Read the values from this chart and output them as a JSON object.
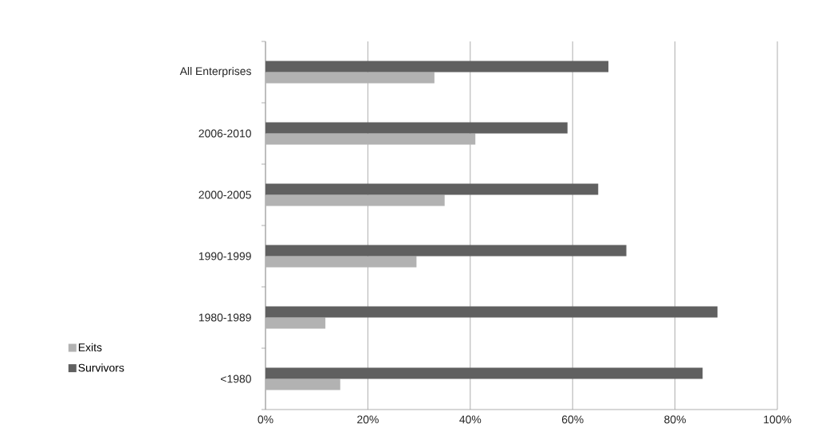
{
  "chart_data": {
    "type": "bar",
    "orientation": "horizontal",
    "categories": [
      "All Enterprises",
      "2006-2010",
      "2000-2005",
      "1990-1999",
      "1980-1989",
      "<1980"
    ],
    "series": [
      {
        "name": "Exits",
        "color": "#b2b2b2",
        "values": [
          33,
          41,
          35,
          29.5,
          11.7,
          14.6
        ]
      },
      {
        "name": "Survivors",
        "color": "#606060",
        "values": [
          67,
          59,
          65,
          70.5,
          88.3,
          85.4
        ]
      }
    ],
    "xlim": [
      0,
      100
    ],
    "xticks": [
      {
        "value": 0,
        "label": "0%"
      },
      {
        "value": 20,
        "label": "20%"
      },
      {
        "value": 40,
        "label": "40%"
      },
      {
        "value": 60,
        "label": "60%"
      },
      {
        "value": 80,
        "label": "80%"
      },
      {
        "value": 100,
        "label": "100%"
      }
    ],
    "grid": "x",
    "legend": "left"
  }
}
